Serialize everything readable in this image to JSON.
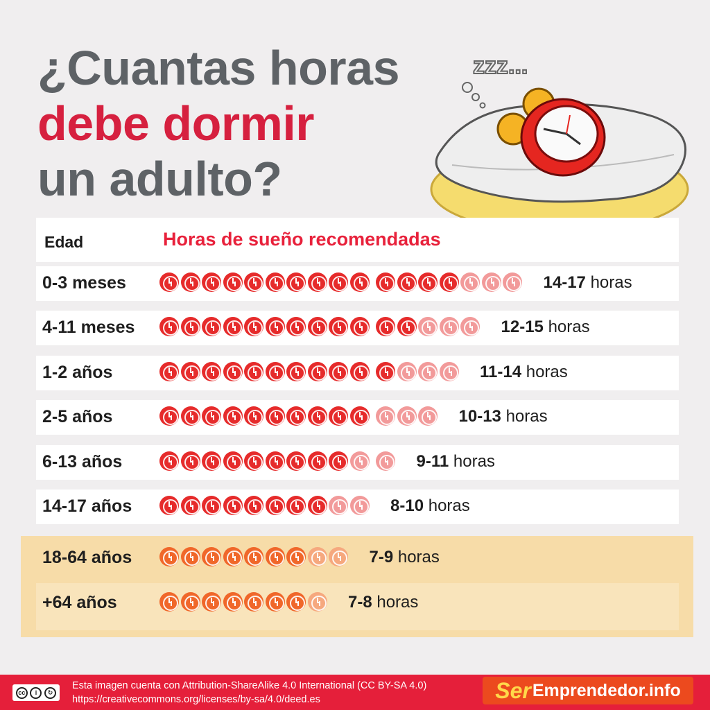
{
  "title": {
    "line1": "¿Cuantas horas",
    "line2": "debe dormir",
    "line3": "un adulto?"
  },
  "colors": {
    "title_gray": "#5e6266",
    "title_red": "#d6203f",
    "clock_red": "#e62b2b",
    "clock_light": "#f29a9a",
    "clock_orange": "#f0672a",
    "highlight_bg": "#f7dca8",
    "footer_red": "#e51f3a"
  },
  "illustration": {
    "icon": "alarm-clock-on-pillow-icon",
    "zzz": "zzz..."
  },
  "table": {
    "header_age": "Edad",
    "header_hours": "Horas de sueño recomendadas",
    "rows": [
      {
        "age": "0-3 meses",
        "range": "14-17",
        "unit": "horas",
        "full": 10,
        "extra": 4,
        "light": 3,
        "style": "red"
      },
      {
        "age": "4-11 meses",
        "range": "12-15",
        "unit": "horas",
        "full": 10,
        "extra": 2,
        "light": 3,
        "style": "red"
      },
      {
        "age": "1-2 años",
        "range": "11-14",
        "unit": "horas",
        "full": 10,
        "extra": 1,
        "light": 3,
        "style": "red"
      },
      {
        "age": "2-5 años",
        "range": "10-13",
        "unit": "horas",
        "full": 10,
        "extra": 0,
        "light": 3,
        "style": "red"
      },
      {
        "age": "6-13 años",
        "range": "9-11",
        "unit": "horas",
        "full": 9,
        "extra": 0,
        "light": 2,
        "style": "red"
      },
      {
        "age": "14-17 años",
        "range": "8-10",
        "unit": "horas",
        "full": 8,
        "extra": 0,
        "light": 2,
        "style": "red"
      },
      {
        "age": "18-64 años",
        "range": "7-9",
        "unit": "horas",
        "full": 7,
        "extra": 0,
        "light": 2,
        "style": "orange"
      },
      {
        "age": "+64 años",
        "range": "7-8",
        "unit": "horas",
        "full": 7,
        "extra": 0,
        "light": 1,
        "style": "orange"
      }
    ]
  },
  "footer": {
    "license_line1": "Esta imagen cuenta con Attribution-ShareAlike 4.0 International (CC BY-SA 4.0)",
    "license_line2": "https://creativecommons.org/licenses/by-sa/4.0/deed.es",
    "cc_icon": "cc-by-sa-icon",
    "brand_ser": "Ser",
    "brand_rest": "Emprendedor.info"
  }
}
